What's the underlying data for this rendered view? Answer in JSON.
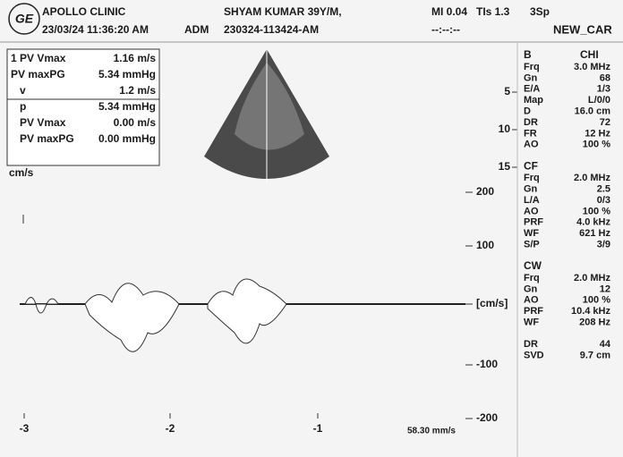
{
  "header": {
    "logo": "GE",
    "clinic": "APOLLO CLINIC",
    "datetime": "23/03/24 11:36:20 AM",
    "operator": "ADM",
    "patient": "SHYAM KUMAR 39Y/M,",
    "exam_id": "230324-113424-AM",
    "mi": "MI 0.04",
    "tis": "TIs 1.3",
    "probe": "3Sp",
    "clock": "--:--:--",
    "preset": "NEW_CAR"
  },
  "measurements": {
    "rows": [
      [
        "1 PV Vmax",
        "1.16 m/s"
      ],
      [
        "PV maxPG",
        "5.34 mmHg"
      ],
      [
        "v",
        "1.2 m/s"
      ],
      [
        "p",
        "5.34 mmHg"
      ],
      [
        "PV Vmax",
        "0.00 m/s"
      ],
      [
        "PV maxPG",
        "0.00 mmHg"
      ]
    ]
  },
  "depth_scale": [
    "5",
    "10",
    "15"
  ],
  "parameters": [
    {
      "title": "B",
      "value": "CHI",
      "rows": [
        [
          "Frq",
          "3.0 MHz"
        ],
        [
          "Gn",
          "68"
        ],
        [
          "E/A",
          "1/3"
        ],
        [
          "Map",
          "L/0/0"
        ],
        [
          "D",
          "16.0 cm"
        ],
        [
          "DR",
          "72"
        ],
        [
          "FR",
          "12 Hz"
        ],
        [
          "AO",
          "100 %"
        ]
      ]
    },
    {
      "title": "CF",
      "rows": [
        [
          "Frq",
          "2.0 MHz"
        ],
        [
          "Gn",
          "2.5"
        ],
        [
          "L/A",
          "0/3"
        ],
        [
          "AO",
          "100 %"
        ],
        [
          "PRF",
          "4.0 kHz"
        ],
        [
          "WF",
          "621 Hz"
        ],
        [
          "S/P",
          "3/9"
        ]
      ]
    },
    {
      "title": "CW",
      "rows": [
        [
          "Frq",
          "2.0 MHz"
        ],
        [
          "Gn",
          "12"
        ],
        [
          "AO",
          "100 %"
        ],
        [
          "PRF",
          "10.4 kHz"
        ],
        [
          "WF",
          "208 Hz"
        ]
      ]
    },
    {
      "rows": [
        [
          "DR",
          "44"
        ],
        [
          "SVD",
          "9.7 cm"
        ]
      ]
    }
  ],
  "doppler": {
    "unit": "cm/s",
    "velocity_labels": [
      "200",
      "100",
      "[cm/s]",
      "-100",
      "-200"
    ],
    "time_labels": [
      "-3",
      "-2",
      "-1"
    ],
    "sweep": "58.30 mm/s"
  }
}
